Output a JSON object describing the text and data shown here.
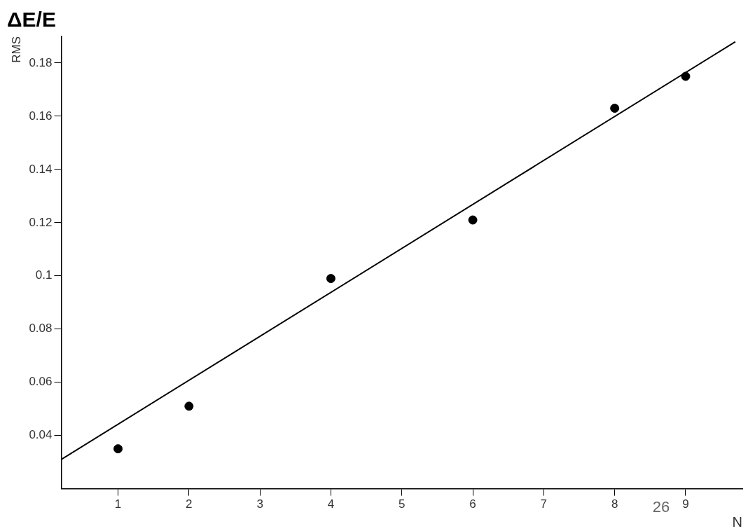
{
  "chart_data": {
    "type": "scatter",
    "title": "ΔE/E",
    "ylabel": "RMS",
    "xlabel": "N",
    "annotations": [
      "26"
    ],
    "xlim": [
      0.2,
      9.8
    ],
    "xticks": [
      1,
      2,
      3,
      4,
      5,
      6,
      7,
      8,
      9
    ],
    "ylim": [
      0.02,
      0.19
    ],
    "yticks": [
      0.04,
      0.06,
      0.08,
      0.1,
      0.12,
      0.14,
      0.16,
      0.18
    ],
    "grid": false,
    "legend": false,
    "series": [
      {
        "marker": "circle",
        "color": "#000000",
        "x": [
          1,
          2,
          4,
          6,
          8,
          9
        ],
        "values": [
          0.035,
          0.051,
          0.099,
          0.121,
          0.163,
          0.175
        ]
      },
      {
        "type": "line",
        "color": "#000000",
        "line_style": "solid",
        "x": [
          0.2,
          9.7
        ],
        "values": [
          0.031,
          0.188
        ]
      }
    ]
  }
}
